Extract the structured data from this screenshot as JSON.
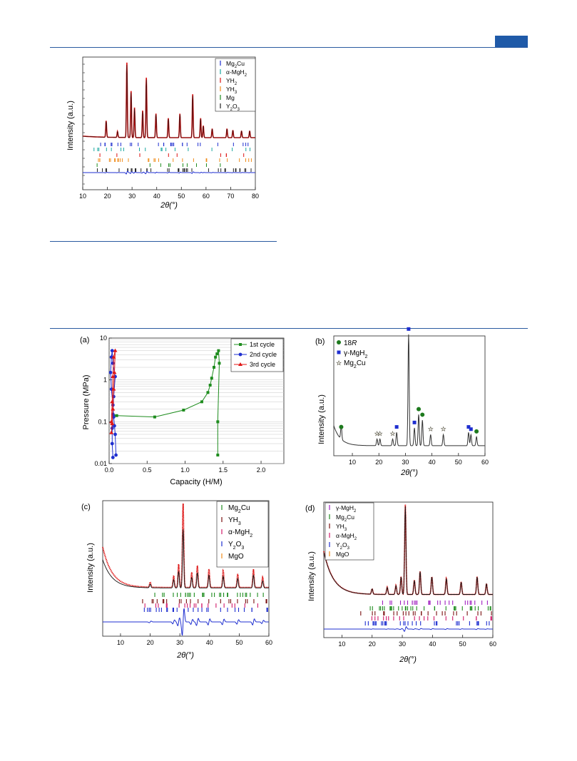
{
  "page": {
    "accent_color": "#1f5aa8"
  },
  "figures": {
    "top": {
      "xlabel": "2θ(°)",
      "ylabel": "Intensity (a.u.)",
      "x_ticks": [
        "10",
        "20",
        "30",
        "40",
        "50",
        "60",
        "70",
        "80"
      ],
      "legend": [
        "Mg2Cu",
        "α-MgH2",
        "YH2",
        "YH3",
        "Mg",
        "Y2O3"
      ]
    },
    "a": {
      "panel_label": "(a)",
      "xlabel": "Capacity (H/M)",
      "ylabel": "Pressure (MPa)",
      "x_ticks": [
        "0.0",
        "0.5",
        "1.0",
        "1.5",
        "2.0"
      ],
      "y_ticks": [
        "0.01",
        "0.1",
        "1",
        "10"
      ],
      "legend": [
        "1st cycle",
        "2nd cycle",
        "3rd cycle"
      ]
    },
    "b": {
      "panel_label": "(b)",
      "xlabel": "2θ(°)",
      "ylabel": "Intensity (a.u.)",
      "x_ticks": [
        "10",
        "20",
        "30",
        "40",
        "50",
        "60"
      ],
      "legend": [
        "18R",
        "γ-MgH2",
        "Mg2Cu"
      ]
    },
    "c": {
      "panel_label": "(c)",
      "xlabel": "2θ(°)",
      "ylabel": "Intensity (a.u.)",
      "x_ticks": [
        "10",
        "20",
        "30",
        "40",
        "50",
        "60"
      ],
      "legend": [
        "Mg2Cu",
        "YH3",
        "α-MgH2",
        "Y2O3",
        "MgO"
      ]
    },
    "d": {
      "panel_label": "(d)",
      "xlabel": "2θ(°)",
      "ylabel": "Intensity (a.u.)",
      "x_ticks": [
        "10",
        "20",
        "30",
        "40",
        "50",
        "60"
      ],
      "legend": [
        "γ-MgH2",
        "Mg2Cu",
        "YH3",
        "α-MgH2",
        "Y2O3",
        "MgO"
      ]
    }
  },
  "chart_data": [
    {
      "id": "top",
      "type": "line",
      "xlabel": "2θ(°)",
      "ylabel": "Intensity (a.u.)",
      "xlim": [
        10,
        80
      ],
      "peaks_2theta": [
        19.5,
        24.1,
        27.9,
        29.6,
        31.0,
        34.3,
        35.8,
        39.7,
        44.7,
        49.4,
        54.6,
        57.8,
        58.9,
        62.5,
        68.5,
        70.9,
        74.4,
        77.7
      ],
      "peak_heights": [
        0.22,
        0.08,
        1.0,
        0.62,
        0.4,
        0.36,
        0.8,
        0.32,
        0.26,
        0.32,
        0.58,
        0.26,
        0.16,
        0.12,
        0.12,
        0.1,
        0.09,
        0.09
      ],
      "legend": [
        "Mg2Cu",
        "α-MgH2",
        "YH2",
        "YH3",
        "Mg",
        "Y2O3"
      ]
    },
    {
      "id": "a",
      "type": "line",
      "xlabel": "Capacity (H/M)",
      "ylabel": "Pressure (MPa)",
      "xlim": [
        0,
        2.3
      ],
      "ylim": [
        0.01,
        10
      ],
      "yscale": "log",
      "series": [
        {
          "name": "1st cycle",
          "color": "#1e8c1e",
          "marker": "square",
          "x": [
            0.06,
            0.1,
            0.6,
            0.98,
            1.22,
            1.3,
            1.33,
            1.35,
            1.38,
            1.4,
            1.42,
            1.44,
            1.45,
            1.43,
            1.43
          ],
          "y": [
            0.14,
            0.14,
            0.13,
            0.19,
            0.3,
            0.5,
            0.75,
            1.1,
            2.0,
            3.5,
            4.2,
            5.0,
            2.5,
            0.1,
            0.016
          ]
        },
        {
          "name": "2nd cycle",
          "color": "#1f2fd0",
          "marker": "circle",
          "x": [
            0.05,
            0.04,
            0.04,
            0.05,
            0.06,
            0.08,
            0.05,
            0.04,
            0.03,
            0.02,
            0.03,
            0.05,
            0.06,
            0.07,
            0.08,
            0.09
          ],
          "y": [
            0.014,
            0.03,
            0.07,
            0.15,
            0.4,
            1.2,
            2.5,
            5.0,
            3.5,
            1.5,
            0.6,
            0.25,
            0.13,
            0.08,
            0.05,
            0.016
          ]
        },
        {
          "name": "3rd cycle",
          "color": "#e01616",
          "marker": "triangle",
          "x": [
            0.03,
            0.04,
            0.05,
            0.06,
            0.07,
            0.08,
            0.06,
            0.05,
            0.04,
            0.03
          ],
          "y": [
            0.055,
            0.09,
            0.2,
            0.6,
            1.5,
            5.0,
            3.5,
            1.2,
            0.3,
            0.1
          ]
        }
      ],
      "legend": [
        "1st cycle",
        "2nd cycle",
        "3rd cycle"
      ]
    },
    {
      "id": "b",
      "type": "line",
      "xlabel": "2θ(°)",
      "ylabel": "Intensity (a.u.)",
      "xlim": [
        3,
        60
      ],
      "peaks_2theta": [
        5.8,
        19.3,
        20.4,
        25.2,
        26.7,
        31.2,
        33.4,
        35.0,
        36.4,
        39.5,
        44.3,
        53.8,
        54.7,
        56.8
      ],
      "peak_heights": [
        0.12,
        0.06,
        0.06,
        0.06,
        0.12,
        1.0,
        0.16,
        0.28,
        0.23,
        0.1,
        0.1,
        0.12,
        0.1,
        0.08
      ],
      "legend": [
        "18R",
        "γ-MgH2",
        "Mg2Cu"
      ]
    },
    {
      "id": "c",
      "type": "line",
      "xlabel": "2θ(°)",
      "ylabel": "Intensity (a.u.)",
      "xlim": [
        4,
        60
      ],
      "peaks_2theta": [
        20.0,
        27.9,
        29.6,
        31.1,
        34.0,
        35.9,
        39.8,
        44.6,
        49.5,
        54.8,
        57.9
      ],
      "peak_heights": [
        0.06,
        0.14,
        0.28,
        1.0,
        0.18,
        0.26,
        0.22,
        0.2,
        0.16,
        0.22,
        0.12
      ],
      "legend": [
        "Mg2Cu",
        "YH3",
        "α-MgH2",
        "Y2O3",
        "MgO"
      ]
    },
    {
      "id": "d",
      "type": "line",
      "xlabel": "2θ(°)",
      "ylabel": "Intensity (a.u.)",
      "xlim": [
        4,
        60
      ],
      "peaks_2theta": [
        20.0,
        25.0,
        27.9,
        29.6,
        31.0,
        34.0,
        35.9,
        39.8,
        44.6,
        49.5,
        54.8,
        57.9
      ],
      "peak_heights": [
        0.06,
        0.08,
        0.1,
        0.2,
        1.0,
        0.16,
        0.26,
        0.2,
        0.18,
        0.14,
        0.2,
        0.12
      ],
      "legend": [
        "γ-MgH2",
        "Mg2Cu",
        "YH3",
        "α-MgH2",
        "Y2O3",
        "MgO"
      ]
    }
  ]
}
